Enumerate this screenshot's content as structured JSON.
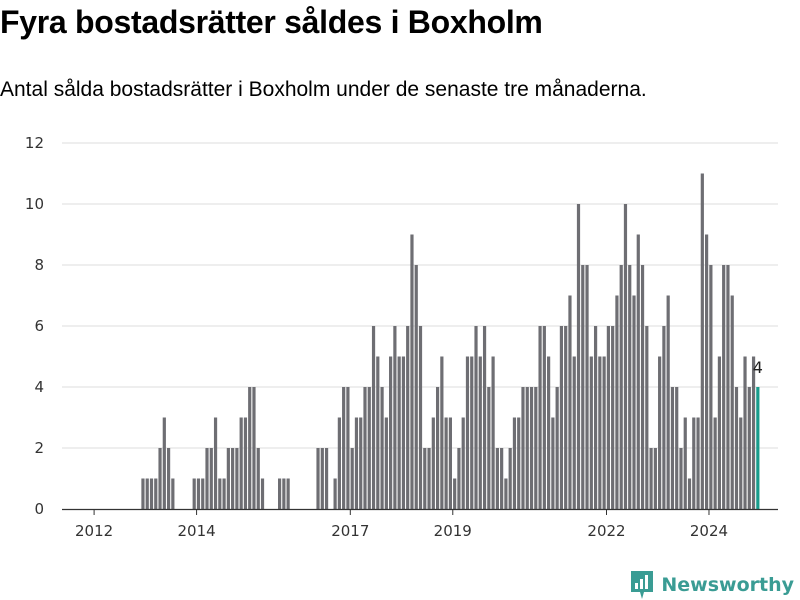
{
  "header": {
    "title": "Fyra bostadsrätter såldes i Boxholm",
    "subtitle": "Antal sålda bostadsrätter i Boxholm under de senaste tre månaderna."
  },
  "brand": {
    "name": "Newsworthy",
    "icon": "newsworthy-logo-icon",
    "color": "#3a9c94"
  },
  "colors": {
    "bar": "#6e6e73",
    "highlight": "#1a9c8c",
    "grid": "#dddddd",
    "axis": "#333333"
  },
  "chart_data": {
    "type": "bar",
    "title": "Fyra bostadsrätter såldes i Boxholm",
    "subtitle": "Antal sålda bostadsrätter i Boxholm under de senaste tre månaderna.",
    "xlabel": "",
    "ylabel": "",
    "ylim": [
      0,
      12
    ],
    "yticks": [
      0,
      2,
      4,
      6,
      8,
      10,
      12
    ],
    "x_start": "2012-01",
    "x_end": "2024-07",
    "x_ticks": [
      "2012",
      "2014",
      "2017",
      "2019",
      "2022",
      "2024"
    ],
    "grid": true,
    "legend": "none",
    "highlight_label": "4",
    "values": [
      0,
      0,
      0,
      0,
      0,
      0,
      0,
      0,
      0,
      0,
      0,
      0,
      0,
      0,
      0,
      0,
      0,
      0,
      1,
      1,
      1,
      1,
      2,
      3,
      2,
      1,
      0,
      0,
      0,
      0,
      1,
      1,
      1,
      2,
      2,
      3,
      1,
      1,
      2,
      2,
      2,
      3,
      3,
      4,
      4,
      2,
      1,
      0,
      0,
      0,
      1,
      1,
      1,
      0,
      0,
      0,
      0,
      0,
      0,
      2,
      2,
      2,
      0,
      1,
      3,
      4,
      4,
      2,
      3,
      3,
      4,
      4,
      6,
      5,
      4,
      3,
      5,
      6,
      5,
      5,
      6,
      9,
      8,
      6,
      2,
      2,
      3,
      4,
      5,
      3,
      3,
      1,
      2,
      3,
      5,
      5,
      6,
      5,
      6,
      4,
      5,
      2,
      2,
      1,
      2,
      3,
      3,
      4,
      4,
      4,
      4,
      6,
      6,
      5,
      3,
      4,
      6,
      6,
      7,
      5,
      10,
      8,
      8,
      5,
      6,
      5,
      5,
      6,
      6,
      7,
      8,
      10,
      8,
      7,
      9,
      8,
      6,
      2,
      2,
      5,
      6,
      7,
      4,
      4,
      2,
      3,
      1,
      3,
      3,
      11,
      9,
      8,
      3,
      5,
      8,
      8,
      7,
      4,
      3,
      5,
      4,
      5,
      4
    ]
  }
}
